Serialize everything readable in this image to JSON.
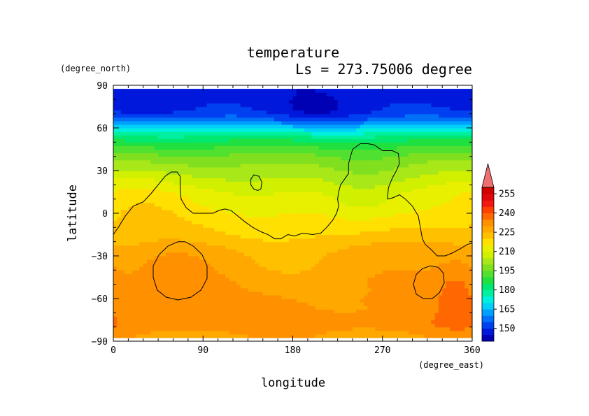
{
  "chart_data": {
    "type": "heatmap",
    "title": "temperature",
    "subtitle": "Ls = 273.75006 degree",
    "xlabel": "longitude",
    "ylabel": "latitude",
    "x_unit": "(degree_east)",
    "y_unit": "(degree_north)",
    "xlim": [
      0,
      360
    ],
    "ylim": [
      -90,
      90
    ],
    "data_extent": {
      "lon": [
        0,
        360
      ],
      "lat": [
        -87.5,
        87.5
      ]
    },
    "x_ticks": [
      0,
      90,
      180,
      270,
      360
    ],
    "y_ticks": [
      -90,
      -60,
      -30,
      0,
      30,
      60,
      90
    ],
    "colorbar": {
      "levels": [
        140,
        145,
        150,
        155,
        160,
        165,
        170,
        175,
        180,
        185,
        190,
        195,
        200,
        205,
        210,
        215,
        220,
        225,
        230,
        235,
        240,
        245,
        250,
        255,
        260
      ],
      "tick_labels": [
        150,
        165,
        180,
        195,
        210,
        225,
        240,
        255
      ],
      "colors": [
        "#0000b4",
        "#0018dc",
        "#0040f0",
        "#0070f8",
        "#00a0ff",
        "#00d0f8",
        "#00f0e0",
        "#00f0a0",
        "#00e870",
        "#20e040",
        "#50e030",
        "#80e020",
        "#a8e818",
        "#d0f000",
        "#e8f000",
        "#ffe000",
        "#ffc000",
        "#ffa800",
        "#ff9000",
        "#ff6800",
        "#ff4000",
        "#f01810",
        "#e00808",
        "#d00000"
      ],
      "extend": "max",
      "extend_color": "#f07070"
    },
    "profile": [
      {
        "lat": 87.5,
        "value": 147
      },
      {
        "lat": 80,
        "value": 148
      },
      {
        "lat": 72,
        "value": 150
      },
      {
        "lat": 66,
        "value": 157
      },
      {
        "lat": 60,
        "value": 170
      },
      {
        "lat": 54,
        "value": 181
      },
      {
        "lat": 48,
        "value": 189
      },
      {
        "lat": 42,
        "value": 195
      },
      {
        "lat": 36,
        "value": 200
      },
      {
        "lat": 30,
        "value": 204
      },
      {
        "lat": 24,
        "value": 208
      },
      {
        "lat": 18,
        "value": 212
      },
      {
        "lat": 12,
        "value": 215
      },
      {
        "lat": 6,
        "value": 216
      },
      {
        "lat": 0,
        "value": 218
      },
      {
        "lat": -6,
        "value": 219
      },
      {
        "lat": -12,
        "value": 220
      },
      {
        "lat": -18,
        "value": 222
      },
      {
        "lat": -24,
        "value": 225
      },
      {
        "lat": -30,
        "value": 227
      },
      {
        "lat": -36,
        "value": 228
      },
      {
        "lat": -42,
        "value": 229
      },
      {
        "lat": -48,
        "value": 230
      },
      {
        "lat": -54,
        "value": 230
      },
      {
        "lat": -60,
        "value": 231
      },
      {
        "lat": -66,
        "value": 231
      },
      {
        "lat": -72,
        "value": 232
      },
      {
        "lat": -78,
        "value": 233
      },
      {
        "lat": -84,
        "value": 230
      },
      {
        "lat": -87.5,
        "value": 229
      }
    ],
    "anomalies": [
      {
        "lon": 55,
        "lat": -45,
        "dlon": 40,
        "dlat": 22,
        "amp": 5
      },
      {
        "lon": 345,
        "lat": -55,
        "dlon": 22,
        "dlat": 28,
        "amp": 6
      },
      {
        "lon": 245,
        "lat": 10,
        "dlon": 45,
        "dlat": 25,
        "amp": -7
      },
      {
        "lon": 160,
        "lat": 15,
        "dlon": 60,
        "dlat": 20,
        "amp": -4
      },
      {
        "lon": 200,
        "lat": 70,
        "dlon": 45,
        "dlat": 12,
        "amp": -5
      },
      {
        "lon": 30,
        "lat": 5,
        "dlon": 30,
        "dlat": 20,
        "amp": 3
      },
      {
        "lon": 160,
        "lat": -40,
        "dlon": 60,
        "dlat": 18,
        "amp": -3
      },
      {
        "lon": 300,
        "lat": -18,
        "dlon": 50,
        "dlat": 12,
        "amp": 3
      }
    ],
    "contours": [
      [
        [
          0,
          -15
        ],
        [
          5,
          -10
        ],
        [
          12,
          -2
        ],
        [
          20,
          5
        ],
        [
          30,
          8
        ],
        [
          38,
          14
        ],
        [
          45,
          20
        ],
        [
          52,
          26
        ],
        [
          58,
          29
        ],
        [
          64,
          29
        ],
        [
          67,
          26
        ],
        [
          67,
          18
        ],
        [
          68,
          10
        ],
        [
          73,
          4
        ],
        [
          80,
          0
        ],
        [
          90,
          0
        ],
        [
          100,
          0
        ],
        [
          106,
          2
        ],
        [
          112,
          3
        ],
        [
          118,
          2
        ],
        [
          125,
          -2
        ],
        [
          132,
          -6
        ],
        [
          140,
          -10
        ],
        [
          148,
          -13
        ],
        [
          155,
          -15
        ],
        [
          162,
          -18
        ],
        [
          168,
          -18
        ],
        [
          175,
          -15
        ],
        [
          182,
          -16
        ],
        [
          190,
          -14
        ],
        [
          200,
          -15
        ],
        [
          208,
          -14
        ],
        [
          214,
          -10
        ],
        [
          220,
          -5
        ],
        [
          224,
          0
        ],
        [
          226,
          5
        ],
        [
          225,
          10
        ],
        [
          226,
          15
        ],
        [
          228,
          20
        ],
        [
          233,
          25
        ],
        [
          236,
          28
        ],
        [
          236,
          35
        ],
        [
          240,
          45
        ],
        [
          248,
          49
        ],
        [
          255,
          49
        ],
        [
          262,
          48
        ],
        [
          270,
          44
        ],
        [
          280,
          44
        ],
        [
          286,
          42
        ],
        [
          287,
          35
        ],
        [
          284,
          30
        ],
        [
          280,
          25
        ],
        [
          276,
          18
        ],
        [
          275,
          10
        ],
        [
          281,
          11
        ],
        [
          287,
          13
        ],
        [
          293,
          10
        ],
        [
          300,
          5
        ],
        [
          306,
          -2
        ],
        [
          308,
          -10
        ],
        [
          310,
          -18
        ],
        [
          313,
          -22
        ],
        [
          318,
          -25
        ],
        [
          325,
          -30
        ],
        [
          333,
          -30
        ],
        [
          340,
          -28
        ],
        [
          348,
          -25
        ],
        [
          355,
          -22
        ],
        [
          360,
          -21
        ]
      ],
      [
        [
          138,
          20
        ],
        [
          138,
          24
        ],
        [
          141,
          27
        ],
        [
          146,
          26
        ],
        [
          149,
          22
        ],
        [
          148,
          17
        ],
        [
          145,
          16
        ],
        [
          141,
          17
        ],
        [
          138,
          20
        ]
      ],
      [
        [
          65,
          -20
        ],
        [
          55,
          -23
        ],
        [
          46,
          -29
        ],
        [
          40,
          -37
        ],
        [
          40,
          -45
        ],
        [
          44,
          -54
        ],
        [
          53,
          -59
        ],
        [
          65,
          -61
        ],
        [
          78,
          -59
        ],
        [
          88,
          -54
        ],
        [
          94,
          -46
        ],
        [
          94,
          -37
        ],
        [
          89,
          -29
        ],
        [
          80,
          -23
        ],
        [
          72,
          -20
        ],
        [
          65,
          -20
        ]
      ],
      [
        [
          318,
          -37
        ],
        [
          310,
          -39
        ],
        [
          304,
          -43
        ],
        [
          301,
          -50
        ],
        [
          304,
          -57
        ],
        [
          311,
          -60
        ],
        [
          320,
          -60
        ],
        [
          327,
          -56
        ],
        [
          332,
          -49
        ],
        [
          331,
          -42
        ],
        [
          326,
          -38
        ],
        [
          318,
          -37
        ]
      ]
    ]
  }
}
